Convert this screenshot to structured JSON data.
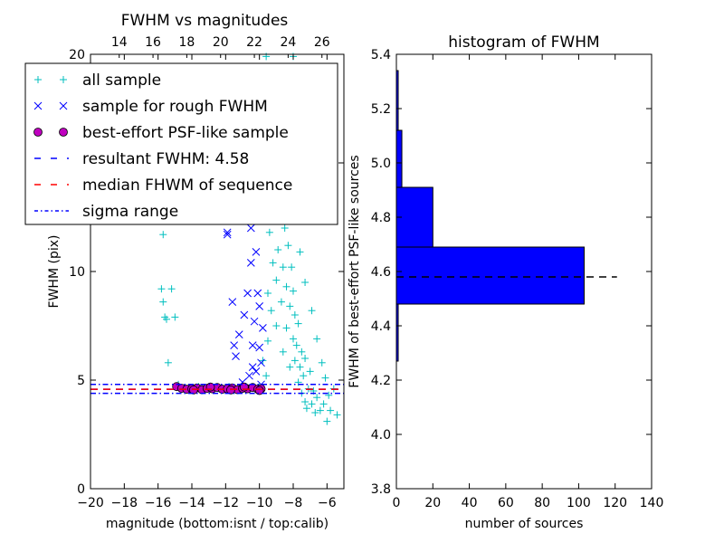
{
  "chart_data": [
    {
      "type": "scatter",
      "title": "FWHM vs magnitudes",
      "xlabel": "magnitude (bottom:isnt / top:calib)",
      "ylabel": "FWHM (pix)",
      "xlim": [
        -20,
        -5
      ],
      "ylim": [
        0,
        20
      ],
      "xticks": [
        "−20",
        "−18",
        "−16",
        "−14",
        "−12",
        "−10",
        "−8",
        "−6"
      ],
      "xtick_values": [
        -20,
        -18,
        -16,
        -14,
        -12,
        -10,
        -8,
        -6
      ],
      "top_xticks": [
        "14",
        "16",
        "18",
        "20",
        "22",
        "24",
        "26"
      ],
      "top_xtick_positions": [
        -18.3,
        -16.3,
        -14.3,
        -12.3,
        -10.3,
        -8.3,
        -6.3
      ],
      "yticks": [
        "0",
        "5",
        "10",
        "15",
        "20"
      ],
      "ytick_values": [
        0,
        5,
        10,
        15,
        20
      ],
      "legend": {
        "placement": "upper-left",
        "entries": [
          {
            "label": "all sample",
            "marker": "+",
            "color": "#00bfbf"
          },
          {
            "label": "sample for rough FWHM",
            "marker": "x",
            "color": "#0000ff"
          },
          {
            "label": "best-effort PSF-like sample",
            "marker": "o",
            "color": "#bf00bf"
          },
          {
            "label": "resultant FWHM: 4.58",
            "marker": "dashed",
            "color": "#0000ff"
          },
          {
            "label": "median FHWM of sequence",
            "marker": "dashed",
            "color": "#ff0000"
          },
          {
            "label": "sigma range",
            "marker": "dashdot",
            "color": "#0000ff"
          }
        ]
      },
      "series": [
        {
          "name": "all sample",
          "color": "#00bfbf",
          "points": [
            [
              -15.7,
              11.7
            ],
            [
              -15.8,
              9.2
            ],
            [
              -15.7,
              8.6
            ],
            [
              -15.6,
              7.9
            ],
            [
              -15.5,
              7.8
            ],
            [
              -15.2,
              9.2
            ],
            [
              -15.0,
              7.9
            ],
            [
              -15.4,
              5.8
            ],
            [
              -14.8,
              4.8
            ],
            [
              -14.2,
              4.6
            ],
            [
              -13.6,
              4.7
            ],
            [
              -13.0,
              4.6
            ],
            [
              -12.4,
              4.6
            ],
            [
              -11.8,
              4.7
            ],
            [
              -11.2,
              4.6
            ],
            [
              -10.6,
              4.6
            ],
            [
              -10.0,
              4.7
            ],
            [
              -9.6,
              5.2
            ],
            [
              -9.5,
              6.8
            ],
            [
              -9.5,
              9.0
            ],
            [
              -9.4,
              11.8
            ],
            [
              -9.5,
              13.5
            ],
            [
              -9.5,
              15.5
            ],
            [
              -9.6,
              19.9
            ],
            [
              -9.3,
              8.2
            ],
            [
              -9.2,
              10.4
            ],
            [
              -9.1,
              12.5
            ],
            [
              -9.2,
              14.3
            ],
            [
              -9.0,
              7.5
            ],
            [
              -9.0,
              9.6
            ],
            [
              -8.9,
              11.0
            ],
            [
              -8.8,
              13.6
            ],
            [
              -8.7,
              8.6
            ],
            [
              -8.6,
              10.2
            ],
            [
              -8.6,
              6.3
            ],
            [
              -8.5,
              12.0
            ],
            [
              -8.4,
              9.3
            ],
            [
              -8.4,
              7.4
            ],
            [
              -8.3,
              11.2
            ],
            [
              -8.2,
              8.4
            ],
            [
              -8.2,
              5.6
            ],
            [
              -8.1,
              10.2
            ],
            [
              -8.0,
              6.9
            ],
            [
              -8.0,
              9.1
            ],
            [
              -7.9,
              5.9
            ],
            [
              -7.9,
              8.0
            ],
            [
              -7.8,
              6.6
            ],
            [
              -7.7,
              4.9
            ],
            [
              -7.7,
              7.6
            ],
            [
              -7.6,
              5.6
            ],
            [
              -7.5,
              6.3
            ],
            [
              -7.5,
              4.4
            ],
            [
              -7.4,
              5.2
            ],
            [
              -7.3,
              4.0
            ],
            [
              -7.3,
              6.0
            ],
            [
              -7.2,
              3.7
            ],
            [
              -7.1,
              4.6
            ],
            [
              -7.0,
              5.4
            ],
            [
              -6.9,
              3.9
            ],
            [
              -6.8,
              4.5
            ],
            [
              -6.7,
              3.5
            ],
            [
              -6.6,
              4.2
            ],
            [
              -6.4,
              3.6
            ],
            [
              -6.2,
              3.9
            ],
            [
              -6.0,
              3.1
            ],
            [
              -5.8,
              3.6
            ],
            [
              -5.6,
              4.6
            ],
            [
              -5.4,
              3.4
            ],
            [
              -8.0,
              19.9
            ],
            [
              -8.5,
              19.4
            ],
            [
              -8.8,
              16.8
            ],
            [
              -8.3,
              15.3
            ],
            [
              -7.6,
              10.9
            ],
            [
              -7.3,
              9.5
            ],
            [
              -6.9,
              8.2
            ],
            [
              -6.6,
              6.9
            ],
            [
              -6.3,
              5.8
            ],
            [
              -6.1,
              5.1
            ],
            [
              -5.9,
              4.3
            ],
            [
              -9.8,
              5.9
            ]
          ]
        },
        {
          "name": "sample for rough FWHM",
          "color": "#0000ff",
          "points": [
            [
              -11.9,
              11.7
            ],
            [
              -11.9,
              11.8
            ],
            [
              -11.6,
              8.6
            ],
            [
              -11.5,
              6.6
            ],
            [
              -11.2,
              7.1
            ],
            [
              -10.9,
              8.0
            ],
            [
              -10.7,
              9.0
            ],
            [
              -10.5,
              10.4
            ],
            [
              -10.5,
              12.0
            ],
            [
              -10.4,
              6.6
            ],
            [
              -10.3,
              7.7
            ],
            [
              -10.2,
              5.4
            ],
            [
              -10.1,
              9.0
            ],
            [
              -10.0,
              6.5
            ],
            [
              -10.0,
              8.4
            ],
            [
              -9.9,
              5.8
            ],
            [
              -9.8,
              7.4
            ],
            [
              -10.4,
              5.6
            ],
            [
              -10.2,
              10.9
            ],
            [
              -10.5,
              13.6
            ],
            [
              -11.4,
              6.1
            ],
            [
              -9.9,
              4.8
            ],
            [
              -10.6,
              5.2
            ],
            [
              -11.0,
              4.9
            ]
          ]
        },
        {
          "name": "best-effort PSF-like sample",
          "color": "#bf00bf",
          "points": [
            [
              -14.9,
              4.7
            ],
            [
              -14.6,
              4.62
            ],
            [
              -14.3,
              4.58
            ],
            [
              -14.0,
              4.6
            ],
            [
              -13.7,
              4.64
            ],
            [
              -13.4,
              4.56
            ],
            [
              -13.1,
              4.62
            ],
            [
              -12.8,
              4.6
            ],
            [
              -12.5,
              4.66
            ],
            [
              -12.2,
              4.58
            ],
            [
              -11.9,
              4.6
            ],
            [
              -11.6,
              4.64
            ],
            [
              -11.3,
              4.56
            ],
            [
              -11.0,
              4.62
            ],
            [
              -10.7,
              4.6
            ],
            [
              -10.4,
              4.66
            ],
            [
              -10.1,
              4.58
            ],
            [
              -9.9,
              4.6
            ],
            [
              -13.9,
              4.55
            ],
            [
              -12.9,
              4.68
            ],
            [
              -11.7,
              4.55
            ],
            [
              -10.9,
              4.68
            ],
            [
              -10.0,
              4.52
            ]
          ]
        }
      ],
      "hlines": [
        {
          "label": "resultant FWHM: 4.58",
          "y": 4.58,
          "color": "#0000ff",
          "style": "dashed"
        },
        {
          "label": "median FHWM of sequence",
          "y": 4.58,
          "color": "#ff0000",
          "style": "dashed"
        },
        {
          "label": "sigma range upper",
          "y": 4.8,
          "color": "#0000ff",
          "style": "dashdot"
        },
        {
          "label": "sigma range lower",
          "y": 4.39,
          "color": "#0000ff",
          "style": "dashdot"
        }
      ]
    },
    {
      "type": "bar",
      "orientation": "horizontal",
      "title": "histogram of FWHM",
      "xlabel": "number of sources",
      "ylabel": "FWHM of best-effort PSF-like sources",
      "xlim": [
        0,
        140
      ],
      "ylim": [
        3.8,
        5.4
      ],
      "xticks": [
        "0",
        "20",
        "40",
        "60",
        "80",
        "100",
        "120",
        "140"
      ],
      "xtick_values": [
        0,
        20,
        40,
        60,
        80,
        100,
        120,
        140
      ],
      "yticks": [
        "3.8",
        "4.0",
        "4.2",
        "4.4",
        "4.6",
        "4.8",
        "5.0",
        "5.2",
        "5.4"
      ],
      "ytick_values": [
        3.8,
        4.0,
        4.2,
        4.4,
        4.6,
        4.8,
        5.0,
        5.2,
        5.4
      ],
      "bar_color": "#0000ff",
      "bins": [
        {
          "low": 4.27,
          "high": 4.48,
          "count": 1
        },
        {
          "low": 4.48,
          "high": 4.69,
          "count": 103
        },
        {
          "low": 4.69,
          "high": 4.91,
          "count": 20
        },
        {
          "low": 4.91,
          "high": 5.12,
          "count": 3
        },
        {
          "low": 5.12,
          "high": 5.34,
          "count": 1
        }
      ],
      "reference_line": {
        "y": 4.58,
        "x_range": [
          0,
          121
        ],
        "style": "dashed",
        "color": "#000000"
      }
    }
  ]
}
